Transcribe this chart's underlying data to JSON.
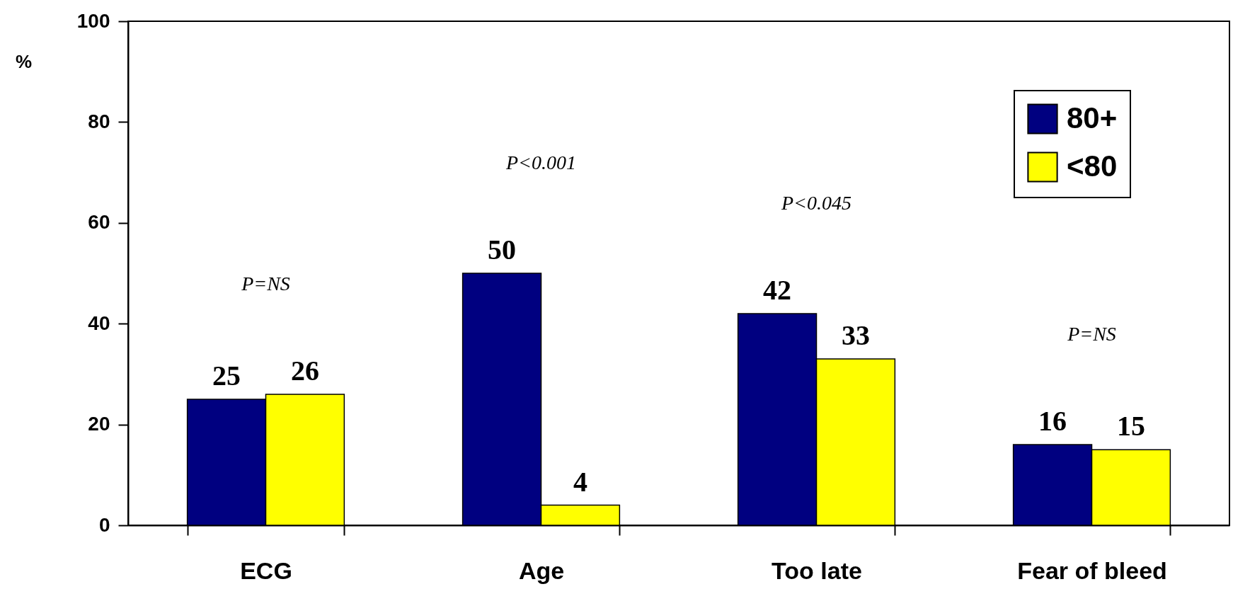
{
  "chart_data": {
    "type": "bar",
    "ylabel": "%",
    "categories": [
      "ECG",
      "Age",
      "Too late",
      "Fear of bleed"
    ],
    "series": [
      {
        "name": "80+",
        "color": "#000080",
        "values": [
          25,
          50,
          42,
          16
        ]
      },
      {
        "name": "<80",
        "color": "#ffff00",
        "values": [
          26,
          4,
          33,
          15
        ]
      }
    ],
    "ylim": [
      0,
      100
    ],
    "yticks": [
      0,
      20,
      40,
      60,
      80,
      100
    ],
    "grid": false,
    "legend": "top right",
    "data_labels": true,
    "annotations": [
      "P=NS",
      "P<0.001",
      "P<0.045",
      "P=NS"
    ]
  }
}
